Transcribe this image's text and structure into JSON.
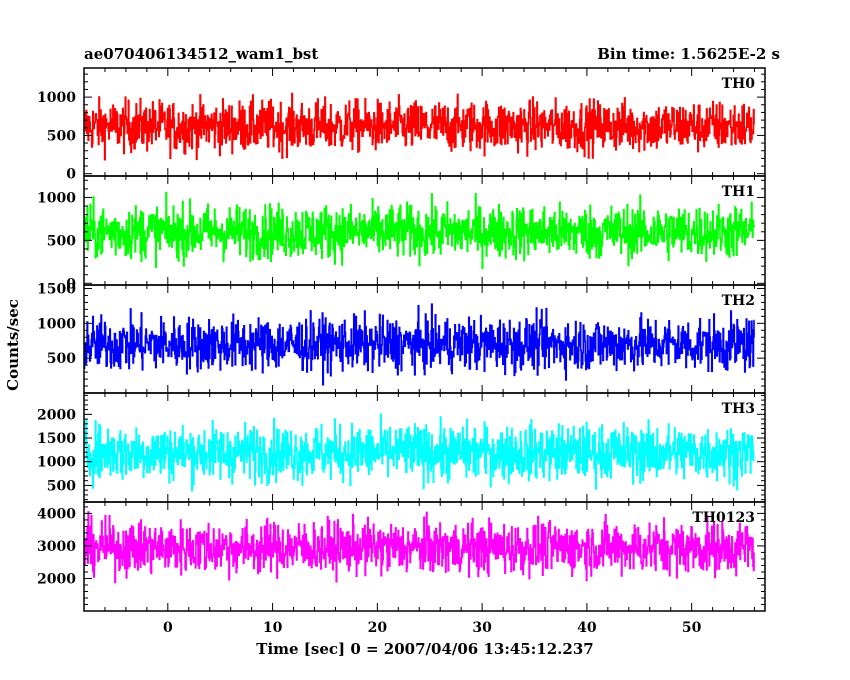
{
  "chart_data": {
    "type": "line",
    "title_left": "ae070406134512_wam1_bst",
    "title_right": "Bin time: 1.5625E-2 s",
    "xlabel": "Time [sec] 0 = 2007/04/06 13:45:12.237",
    "ylabel": "Counts/sec",
    "xlim": [
      -8,
      57
    ],
    "x_ticks": [
      "0",
      "10",
      "20",
      "30",
      "40",
      "50"
    ],
    "x_tick_values": [
      0,
      10,
      20,
      30,
      40,
      50
    ],
    "data_x_range": [
      -8,
      56
    ],
    "panels": [
      {
        "name": "TH0",
        "color": "#ff0000",
        "ylim": [
          -30,
          1380
        ],
        "y_ticks": [
          "0",
          "500",
          "1000"
        ],
        "y_tick_values": [
          0,
          500,
          1000
        ],
        "mean": 620,
        "low": 80,
        "high": 1320
      },
      {
        "name": "TH1",
        "color": "#00ff00",
        "ylim": [
          -20,
          1250
        ],
        "y_ticks": [
          "0",
          "500",
          "1000"
        ],
        "y_tick_values": [
          0,
          500,
          1000
        ],
        "mean": 600,
        "low": 60,
        "high": 1230
      },
      {
        "name": "TH2",
        "color": "#0000ff",
        "ylim": [
          0,
          1550
        ],
        "y_ticks": [
          "500",
          "1000",
          "1500"
        ],
        "y_tick_values": [
          500,
          1000,
          1500
        ],
        "mean": 700,
        "low": 60,
        "high": 1500
      },
      {
        "name": "TH3",
        "color": "#00ffff",
        "ylim": [
          150,
          2450
        ],
        "y_ticks": [
          "500",
          "1000",
          "1500",
          "2000"
        ],
        "y_tick_values": [
          500,
          1000,
          1500,
          2000
        ],
        "mean": 1200,
        "low": 250,
        "high": 2450
      },
      {
        "name": "TH0123",
        "color": "#ff00ff",
        "ylim": [
          1000,
          4350
        ],
        "y_ticks": [
          "2000",
          "3000",
          "4000"
        ],
        "y_tick_values": [
          2000,
          3000,
          4000
        ],
        "mean": 2950,
        "low": 1300,
        "high": 4300
      }
    ]
  }
}
